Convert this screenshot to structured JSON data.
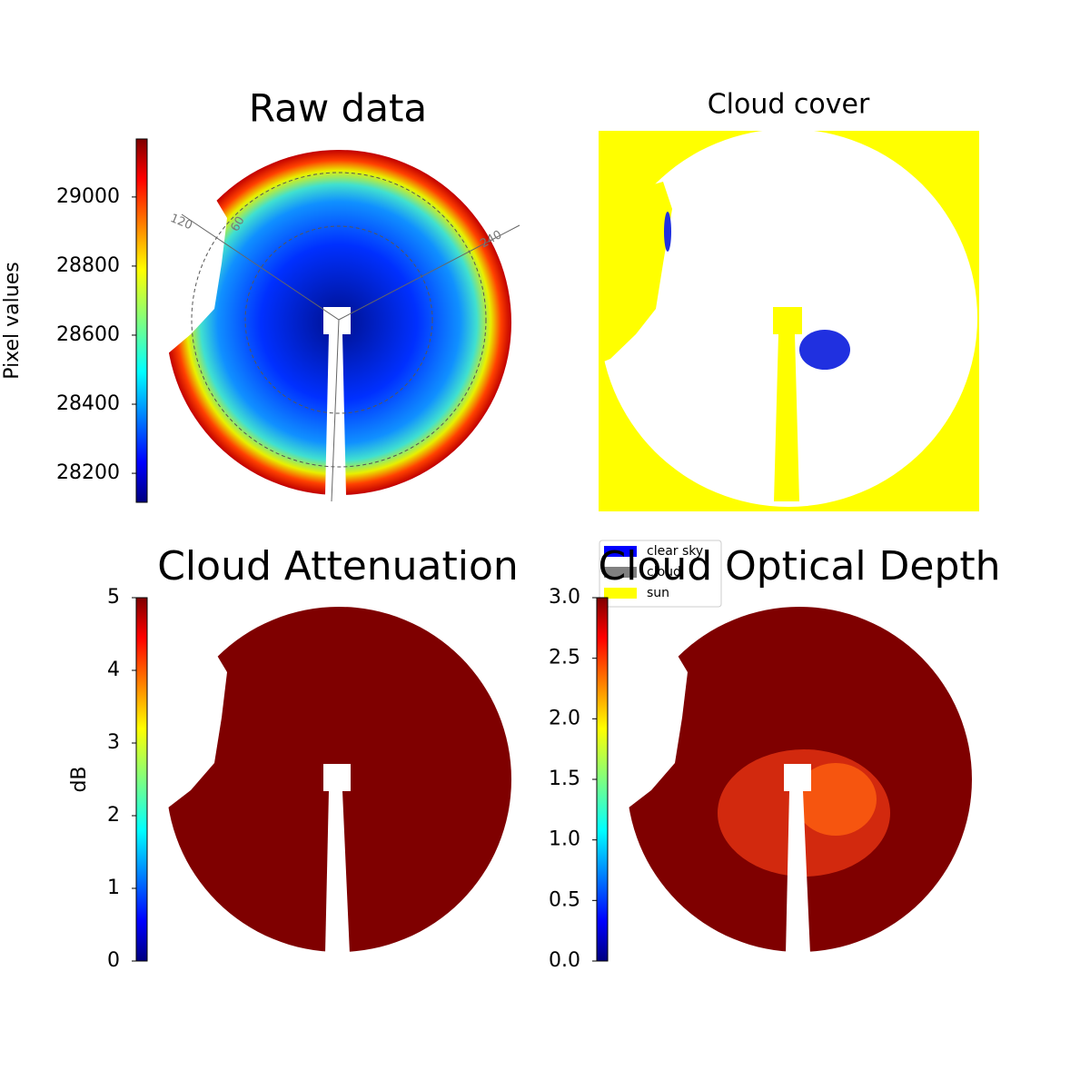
{
  "chart_data": [
    {
      "type": "image",
      "title": "Raw data",
      "colormap": "jet",
      "colorbar": {
        "label": "Pixel values",
        "lim": [
          28116,
          29168
        ],
        "ticks": [
          28200,
          28400,
          28600,
          28800,
          29000
        ]
      },
      "annotations": [
        "120",
        "60",
        "240"
      ]
    },
    {
      "type": "image",
      "title": "Cloud cover",
      "legend": [
        {
          "name": "clear sky",
          "color": "#0000ff"
        },
        {
          "name": "cloud",
          "color": "#808080"
        },
        {
          "name": "sun",
          "color": "#ffff00"
        }
      ]
    },
    {
      "type": "image",
      "title": "Cloud Attenuation",
      "colormap": "jet",
      "colorbar": {
        "label": "dB",
        "lim": [
          0,
          5
        ],
        "ticks": [
          0,
          1,
          2,
          3,
          4,
          5
        ]
      }
    },
    {
      "type": "image",
      "title": "Cloud Optical Depth",
      "colormap": "jet",
      "colorbar": {
        "lim": [
          0,
          3
        ],
        "ticks": [
          {
            "value": 0,
            "label": "0.0"
          },
          {
            "value": 0.5,
            "label": "0.5"
          },
          {
            "value": 1,
            "label": "1.0"
          },
          {
            "value": 1.5,
            "label": "1.5"
          },
          {
            "value": 2,
            "label": "2.0"
          },
          {
            "value": 2.5,
            "label": "2.5"
          },
          {
            "value": 3,
            "label": "3.0"
          }
        ]
      }
    }
  ]
}
